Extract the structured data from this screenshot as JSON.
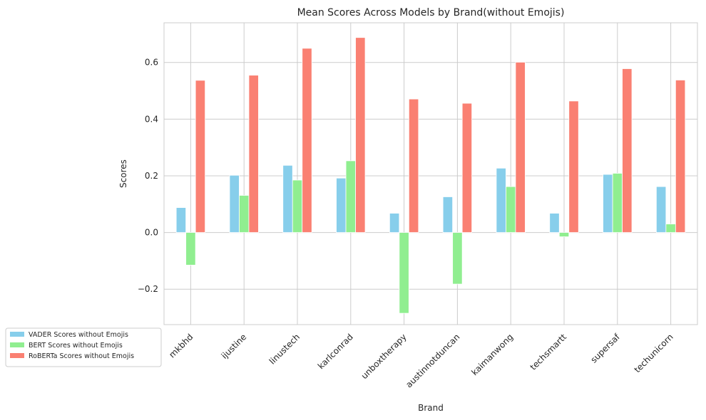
{
  "chart_data": {
    "type": "bar",
    "title": "Mean Scores Across Models by Brand(without Emojis)",
    "xlabel": "Brand",
    "ylabel": "Scores",
    "ylim": [
      -0.325,
      0.74
    ],
    "yticks": [
      -0.2,
      0.0,
      0.2,
      0.4,
      0.6
    ],
    "ytick_labels": [
      "−0.2",
      "0.0",
      "0.2",
      "0.4",
      "0.6"
    ],
    "grid": true,
    "legend_position": "lower-left",
    "categories": [
      "mkbhd",
      "ijustine",
      "linustech",
      "karlconrad",
      "unboxtherapy",
      "austinnotduncan",
      "kaimanwong",
      "techsmartt",
      "supersaf",
      "techunicorn"
    ],
    "series": [
      {
        "name": "VADER Scores without Emojis",
        "color": "#87ceeb",
        "values": [
          0.088,
          0.202,
          0.237,
          0.192,
          0.068,
          0.126,
          0.227,
          0.068,
          0.205,
          0.162
        ]
      },
      {
        "name": "BERT Scores without Emojis",
        "color": "#90ee90",
        "values": [
          -0.115,
          0.131,
          0.185,
          0.253,
          -0.285,
          -0.182,
          0.162,
          -0.015,
          0.209,
          0.03
        ]
      },
      {
        "name": "RoBERTa Scores without Emojis",
        "color": "#fa8072",
        "values": [
          0.537,
          0.555,
          0.65,
          0.688,
          0.471,
          0.456,
          0.601,
          0.464,
          0.578,
          0.538
        ]
      }
    ]
  }
}
